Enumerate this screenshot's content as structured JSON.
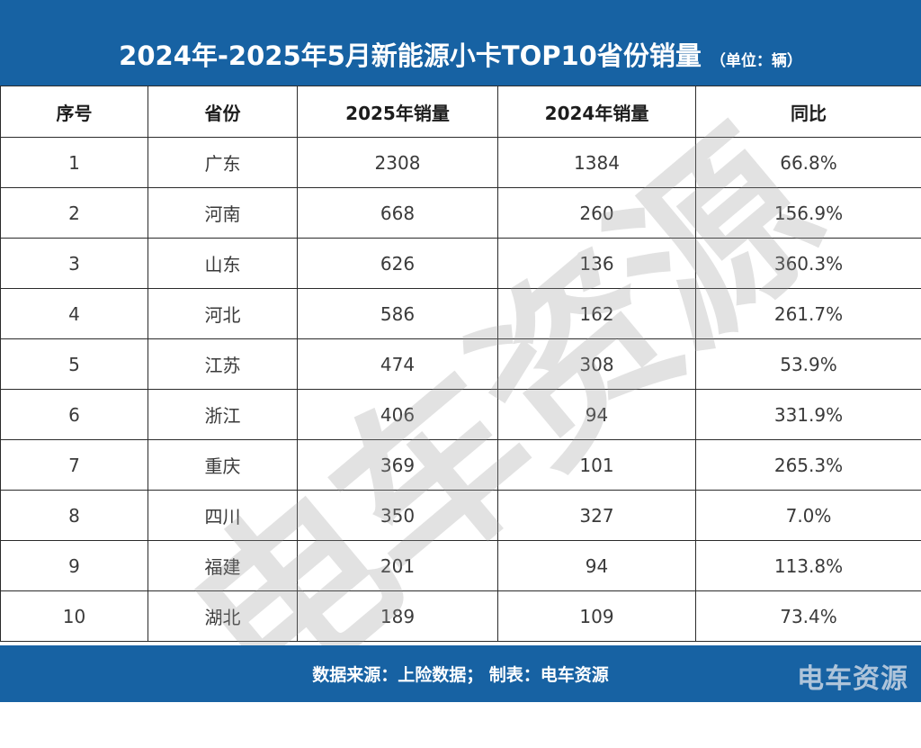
{
  "title": {
    "main": "2024年-2025年5月新能源小卡TOP10省份销量",
    "unit": "（单位：辆）"
  },
  "table": {
    "headers": [
      "序号",
      "省份",
      "2025年销量",
      "2024年销量",
      "同比"
    ],
    "rows": [
      [
        "1",
        "广东",
        "2308",
        "1384",
        "66.8%"
      ],
      [
        "2",
        "河南",
        "668",
        "260",
        "156.9%"
      ],
      [
        "3",
        "山东",
        "626",
        "136",
        "360.3%"
      ],
      [
        "4",
        "河北",
        "586",
        "162",
        "261.7%"
      ],
      [
        "5",
        "江苏",
        "474",
        "308",
        "53.9%"
      ],
      [
        "6",
        "浙江",
        "406",
        "94",
        "331.9%"
      ],
      [
        "7",
        "重庆",
        "369",
        "101",
        "265.3%"
      ],
      [
        "8",
        "四川",
        "350",
        "327",
        "7.0%"
      ],
      [
        "9",
        "福建",
        "201",
        "94",
        "113.8%"
      ],
      [
        "10",
        "湖北",
        "189",
        "109",
        "73.4%"
      ]
    ]
  },
  "footer": {
    "source": "数据来源：上险数据；  制表：电车资源",
    "logo": "电车资源"
  },
  "watermark": "电车资源",
  "colors": {
    "brand_blue": "#1762a3",
    "border": "#2b2b2b",
    "text": "#3a3a3a"
  }
}
